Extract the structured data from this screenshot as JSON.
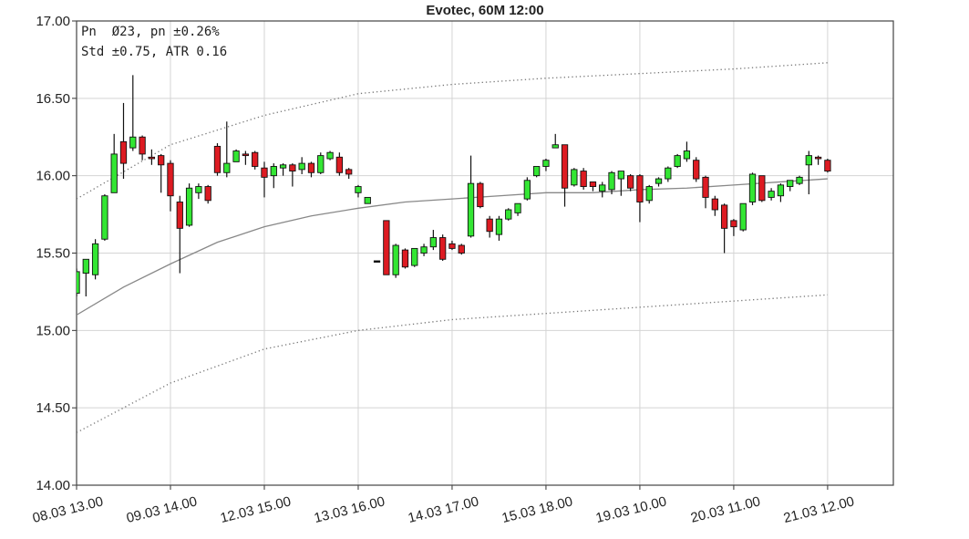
{
  "chart_data": {
    "type": "candlestick",
    "title": "Evotec, 60M 12:00",
    "annotations": [
      "Pn  Ø23, pn ±0.26%",
      "Std ±0.75, ATR 0.16"
    ],
    "categories": [
      "08.03 13.00",
      null,
      null,
      null,
      null,
      null,
      null,
      null,
      null,
      null,
      "09.03 14.00",
      null,
      null,
      null,
      null,
      null,
      null,
      null,
      null,
      null,
      "12.03 15.00",
      null,
      null,
      null,
      null,
      null,
      null,
      null,
      null,
      null,
      "13.03 16.00",
      null,
      null,
      null,
      null,
      null,
      null,
      null,
      null,
      null,
      "14.03 17.00",
      null,
      null,
      null,
      null,
      null,
      null,
      null,
      null,
      null,
      "15.03 18.00",
      null,
      null,
      null,
      null,
      null,
      null,
      null,
      null,
      null,
      "19.03 10.00",
      null,
      null,
      null,
      null,
      null,
      null,
      null,
      null,
      null,
      "20.03 11.00",
      null,
      null,
      null,
      null,
      null,
      null,
      null,
      null,
      null,
      "21.03 12.00"
    ],
    "open": [
      15.24,
      15.37,
      15.36,
      15.59,
      15.89,
      16.22,
      16.18,
      16.25,
      16.12,
      16.13,
      16.08,
      15.83,
      15.68,
      15.89,
      15.93,
      16.19,
      16.02,
      16.09,
      16.14,
      16.15,
      16.05,
      16.0,
      16.05,
      16.07,
      16.04,
      16.08,
      16.02,
      16.11,
      16.12,
      16.04,
      15.89,
      15.82,
      15.45,
      15.71,
      15.36,
      15.52,
      15.42,
      15.5,
      15.54,
      15.6,
      15.56,
      15.55,
      15.61,
      15.95,
      15.72,
      15.62,
      15.72,
      15.76,
      15.85,
      16.0,
      16.06,
      16.18,
      16.2,
      15.94,
      16.03,
      15.96,
      15.9,
      15.91,
      15.98,
      16.0,
      16.0,
      15.84,
      15.95,
      15.98,
      16.06,
      16.11,
      16.1,
      15.99,
      15.85,
      15.81,
      15.71,
      15.65,
      15.83,
      16.0,
      15.86,
      15.87,
      15.93,
      15.95,
      16.07,
      16.12,
      16.1
    ],
    "high": [
      15.4,
      15.46,
      15.59,
      15.88,
      16.27,
      16.47,
      16.65,
      16.26,
      16.17,
      16.14,
      16.1,
      15.87,
      15.95,
      15.95,
      15.94,
      16.21,
      16.35,
      16.17,
      16.16,
      16.16,
      16.09,
      16.08,
      16.08,
      16.08,
      16.12,
      16.09,
      16.15,
      16.16,
      16.15,
      16.05,
      15.94,
      15.86,
      15.45,
      15.71,
      15.56,
      15.53,
      15.53,
      15.56,
      15.65,
      15.62,
      15.58,
      15.56,
      16.13,
      15.96,
      15.74,
      15.74,
      15.79,
      15.82,
      15.99,
      16.06,
      16.11,
      16.27,
      16.2,
      16.05,
      16.05,
      15.96,
      15.96,
      16.03,
      16.03,
      16.01,
      16.01,
      15.94,
      15.99,
      16.06,
      16.14,
      16.22,
      16.12,
      16.0,
      15.87,
      15.82,
      15.72,
      15.82,
      16.02,
      16.0,
      15.92,
      15.95,
      15.97,
      16.0,
      16.16,
      16.13,
      16.11
    ],
    "low": [
      15.22,
      15.22,
      15.33,
      15.58,
      15.89,
      15.98,
      16.16,
      16.1,
      16.07,
      15.89,
      15.77,
      15.37,
      15.67,
      15.85,
      15.82,
      16.0,
      15.99,
      16.09,
      16.07,
      16.04,
      15.86,
      15.92,
      16.0,
      15.93,
      16.01,
      15.99,
      16.01,
      16.1,
      16.0,
      15.98,
      15.86,
      15.82,
      15.45,
      15.36,
      15.34,
      15.4,
      15.41,
      15.48,
      15.52,
      15.45,
      15.52,
      15.49,
      15.6,
      15.79,
      15.6,
      15.58,
      15.71,
      15.74,
      15.84,
      15.99,
      16.03,
      16.18,
      15.8,
      15.93,
      15.91,
      15.9,
      15.86,
      15.88,
      15.87,
      15.9,
      15.7,
      15.82,
      15.93,
      15.96,
      16.05,
      16.09,
      15.96,
      15.79,
      15.74,
      15.5,
      15.61,
      15.64,
      15.81,
      15.83,
      15.84,
      15.83,
      15.9,
      15.94,
      15.88,
      16.07,
      16.02
    ],
    "close": [
      15.38,
      15.46,
      15.56,
      15.87,
      16.14,
      16.08,
      16.25,
      16.14,
      16.11,
      16.07,
      15.87,
      15.66,
      15.92,
      15.93,
      15.84,
      16.02,
      16.08,
      16.16,
      16.13,
      16.06,
      15.99,
      16.06,
      16.07,
      16.03,
      16.08,
      16.02,
      16.13,
      16.15,
      16.02,
      16.01,
      15.93,
      15.86,
      15.45,
      15.36,
      15.55,
      15.41,
      15.53,
      15.54,
      15.6,
      15.46,
      15.53,
      15.5,
      15.95,
      15.8,
      15.64,
      15.72,
      15.78,
      15.82,
      15.97,
      16.06,
      16.1,
      16.2,
      15.92,
      16.04,
      15.93,
      15.93,
      15.94,
      16.02,
      16.03,
      15.92,
      15.83,
      15.93,
      15.98,
      16.05,
      16.13,
      16.16,
      15.98,
      15.86,
      15.78,
      15.66,
      15.67,
      15.82,
      16.01,
      15.84,
      15.9,
      15.94,
      15.97,
      15.99,
      16.13,
      16.11,
      16.03
    ],
    "up_color": "#33e633",
    "down_color": "#dd1b22",
    "flat_color": "#000000",
    "lines": [
      {
        "x": [
          0,
          5,
          10,
          15,
          20,
          25,
          30,
          35,
          40,
          45,
          50,
          55,
          60,
          65,
          70,
          75,
          80
        ],
        "values": [
          15.1,
          15.28,
          15.43,
          15.57,
          15.67,
          15.74,
          15.79,
          15.83,
          15.85,
          15.87,
          15.89,
          15.89,
          15.91,
          15.92,
          15.94,
          15.96,
          15.98
        ],
        "color": "#888888",
        "style": "solid"
      },
      {
        "x": [
          0,
          10,
          20,
          30,
          40,
          50,
          60,
          70,
          80
        ],
        "values": [
          15.85,
          16.2,
          16.39,
          16.53,
          16.59,
          16.63,
          16.66,
          16.69,
          16.73
        ],
        "color": "#777777",
        "style": "dotted"
      },
      {
        "x": [
          0,
          10,
          20,
          30,
          40,
          50,
          60,
          70,
          80
        ],
        "values": [
          14.34,
          14.66,
          14.88,
          15.0,
          15.07,
          15.11,
          15.15,
          15.19,
          15.23
        ],
        "color": "#777777",
        "style": "dotted"
      }
    ],
    "xlim": [
      0,
      87
    ],
    "ylim": [
      14,
      17
    ],
    "yticks": [
      {
        "value": 14,
        "label": "14.00"
      },
      {
        "value": 14.5,
        "label": "14.50"
      },
      {
        "value": 15,
        "label": "15.00"
      },
      {
        "value": 15.5,
        "label": "15.50"
      },
      {
        "value": 16,
        "label": "16.00"
      },
      {
        "value": 16.5,
        "label": "16.50"
      },
      {
        "value": 17,
        "label": "17.00"
      }
    ],
    "grid": true
  }
}
